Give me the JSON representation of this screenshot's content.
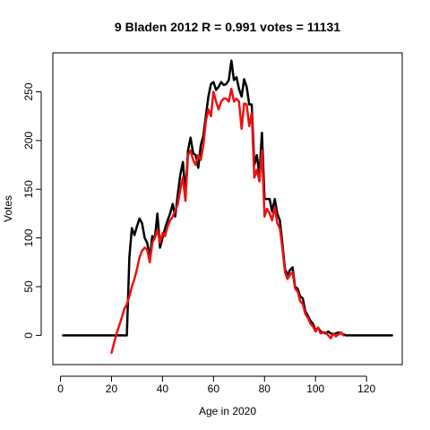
{
  "chart_data": {
    "type": "line",
    "title": "9 Bladen 2012 R = 0.991 votes = 11131",
    "xlabel": "Age in 2020",
    "ylabel": "Votes",
    "xlim": [
      -3,
      134
    ],
    "ylim": [
      -30,
      290
    ],
    "x_ticks": [
      0,
      20,
      40,
      60,
      80,
      100,
      120
    ],
    "y_ticks": [
      0,
      50,
      100,
      150,
      200,
      250
    ],
    "grid": false,
    "series": [
      {
        "color": "#000000",
        "points": [
          [
            1,
            0
          ],
          [
            5,
            0
          ],
          [
            10,
            0
          ],
          [
            15,
            0
          ],
          [
            20,
            0
          ],
          [
            25,
            0
          ],
          [
            26,
            0
          ],
          [
            27,
            80
          ],
          [
            28,
            110
          ],
          [
            29,
            103
          ],
          [
            30,
            112
          ],
          [
            31,
            120
          ],
          [
            32,
            115
          ],
          [
            33,
            100
          ],
          [
            34,
            95
          ],
          [
            35,
            80
          ],
          [
            36,
            102
          ],
          [
            37,
            100
          ],
          [
            38,
            125
          ],
          [
            39,
            90
          ],
          [
            40,
            100
          ],
          [
            41,
            110
          ],
          [
            42,
            118
          ],
          [
            43,
            125
          ],
          [
            44,
            135
          ],
          [
            45,
            122
          ],
          [
            46,
            145
          ],
          [
            47,
            165
          ],
          [
            48,
            178
          ],
          [
            49,
            145
          ],
          [
            50,
            190
          ],
          [
            51,
            203
          ],
          [
            52,
            187
          ],
          [
            53,
            185
          ],
          [
            54,
            172
          ],
          [
            55,
            195
          ],
          [
            56,
            205
          ],
          [
            57,
            225
          ],
          [
            58,
            245
          ],
          [
            59,
            258
          ],
          [
            60,
            260
          ],
          [
            61,
            252
          ],
          [
            62,
            255
          ],
          [
            63,
            260
          ],
          [
            64,
            257
          ],
          [
            65,
            258
          ],
          [
            66,
            262
          ],
          [
            67,
            282
          ],
          [
            68,
            262
          ],
          [
            69,
            265
          ],
          [
            70,
            253
          ],
          [
            71,
            245
          ],
          [
            72,
            263
          ],
          [
            73,
            255
          ],
          [
            74,
            237
          ],
          [
            75,
            237
          ],
          [
            76,
            175
          ],
          [
            77,
            185
          ],
          [
            78,
            165
          ],
          [
            79,
            208
          ],
          [
            80,
            140
          ],
          [
            81,
            140
          ],
          [
            82,
            140
          ],
          [
            83,
            127
          ],
          [
            84,
            140
          ],
          [
            85,
            125
          ],
          [
            86,
            118
          ],
          [
            87,
            95
          ],
          [
            88,
            68
          ],
          [
            89,
            62
          ],
          [
            90,
            67
          ],
          [
            91,
            70
          ],
          [
            92,
            50
          ],
          [
            93,
            48
          ],
          [
            94,
            40
          ],
          [
            95,
            38
          ],
          [
            96,
            25
          ],
          [
            97,
            20
          ],
          [
            98,
            15
          ],
          [
            99,
            12
          ],
          [
            100,
            5
          ],
          [
            101,
            8
          ],
          [
            102,
            4
          ],
          [
            103,
            3
          ],
          [
            104,
            2
          ],
          [
            105,
            4
          ],
          [
            106,
            2
          ],
          [
            107,
            1
          ],
          [
            108,
            2
          ],
          [
            109,
            3
          ],
          [
            110,
            2
          ],
          [
            111,
            1
          ],
          [
            112,
            0
          ],
          [
            115,
            0
          ],
          [
            120,
            0
          ],
          [
            125,
            0
          ],
          [
            130,
            0
          ]
        ]
      },
      {
        "color": "#ee1111",
        "points": [
          [
            20,
            -18
          ],
          [
            21,
            -8
          ],
          [
            22,
            2
          ],
          [
            23,
            10
          ],
          [
            24,
            18
          ],
          [
            25,
            27
          ],
          [
            26,
            32
          ],
          [
            27,
            40
          ],
          [
            28,
            50
          ],
          [
            29,
            58
          ],
          [
            30,
            68
          ],
          [
            31,
            80
          ],
          [
            32,
            87
          ],
          [
            33,
            90
          ],
          [
            34,
            88
          ],
          [
            35,
            75
          ],
          [
            36,
            95
          ],
          [
            37,
            100
          ],
          [
            38,
            108
          ],
          [
            39,
            95
          ],
          [
            40,
            105
          ],
          [
            41,
            102
          ],
          [
            42,
            112
          ],
          [
            43,
            118
          ],
          [
            44,
            122
          ],
          [
            45,
            128
          ],
          [
            46,
            135
          ],
          [
            47,
            150
          ],
          [
            48,
            162
          ],
          [
            49,
            138
          ],
          [
            50,
            185
          ],
          [
            51,
            190
          ],
          [
            52,
            180
          ],
          [
            53,
            175
          ],
          [
            54,
            185
          ],
          [
            55,
            180
          ],
          [
            56,
            195
          ],
          [
            57,
            220
          ],
          [
            58,
            232
          ],
          [
            59,
            225
          ],
          [
            60,
            250
          ],
          [
            61,
            240
          ],
          [
            62,
            232
          ],
          [
            63,
            240
          ],
          [
            64,
            243
          ],
          [
            65,
            243
          ],
          [
            66,
            240
          ],
          [
            67,
            253
          ],
          [
            68,
            240
          ],
          [
            69,
            243
          ],
          [
            70,
            240
          ],
          [
            71,
            212
          ],
          [
            72,
            238
          ],
          [
            73,
            237
          ],
          [
            74,
            215
          ],
          [
            75,
            228
          ],
          [
            76,
            162
          ],
          [
            77,
            170
          ],
          [
            78,
            158
          ],
          [
            79,
            190
          ],
          [
            80,
            122
          ],
          [
            81,
            130
          ],
          [
            82,
            125
          ],
          [
            83,
            118
          ],
          [
            84,
            132
          ],
          [
            85,
            115
          ],
          [
            86,
            110
          ],
          [
            87,
            90
          ],
          [
            88,
            65
          ],
          [
            89,
            58
          ],
          [
            90,
            62
          ],
          [
            91,
            65
          ],
          [
            92,
            48
          ],
          [
            93,
            45
          ],
          [
            94,
            35
          ],
          [
            95,
            32
          ],
          [
            96,
            22
          ],
          [
            97,
            18
          ],
          [
            98,
            12
          ],
          [
            99,
            9
          ],
          [
            100,
            4
          ],
          [
            101,
            8
          ],
          [
            102,
            2
          ],
          [
            103,
            3
          ],
          [
            104,
            3
          ],
          [
            105,
            0
          ],
          [
            106,
            -3
          ],
          [
            107,
            2
          ],
          [
            108,
            -1
          ],
          [
            109,
            1
          ],
          [
            110,
            3
          ],
          [
            111,
            0
          ]
        ]
      }
    ]
  }
}
